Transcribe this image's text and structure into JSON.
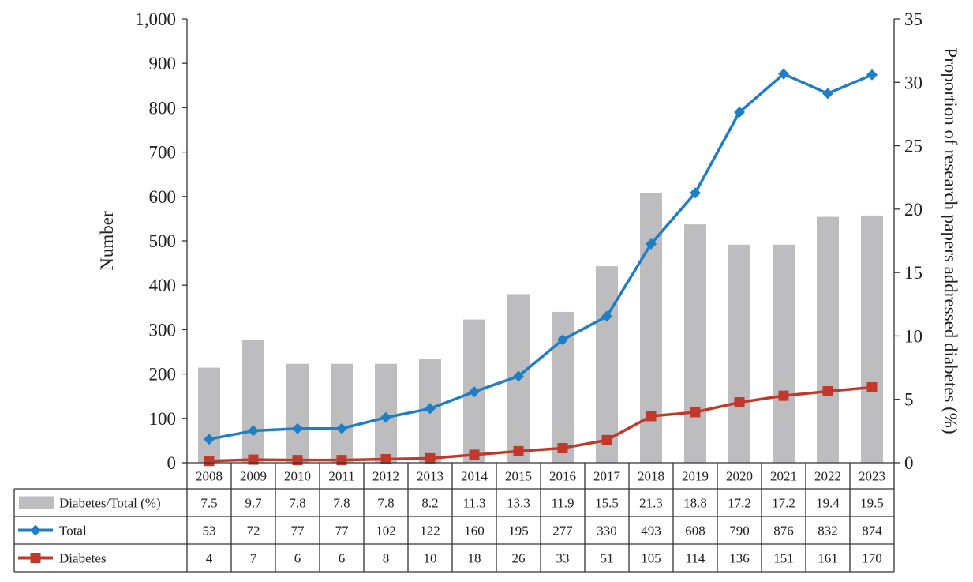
{
  "chart_data": {
    "type": "bar",
    "categories": [
      "2008",
      "2009",
      "2010",
      "2011",
      "2012",
      "2013",
      "2014",
      "2015",
      "2016",
      "2017",
      "2018",
      "2019",
      "2020",
      "2021",
      "2022",
      "2023"
    ],
    "series": [
      {
        "name": "Diabetes/Total (%)",
        "kind": "bar",
        "axis": "right",
        "color": "#bdbdbf",
        "values": [
          7.5,
          9.7,
          7.8,
          7.8,
          7.8,
          8.2,
          11.3,
          13.3,
          11.9,
          15.5,
          21.3,
          18.8,
          17.2,
          17.2,
          19.4,
          19.5
        ]
      },
      {
        "name": "Total",
        "kind": "line",
        "axis": "left",
        "color": "#1f7ec4",
        "marker": "diamond",
        "values": [
          53,
          72,
          77,
          77,
          102,
          122,
          160,
          195,
          277,
          330,
          493,
          608,
          790,
          876,
          832,
          874
        ]
      },
      {
        "name": "Diabetes",
        "kind": "line",
        "axis": "left",
        "color": "#c1392b",
        "marker": "square",
        "values": [
          4,
          7,
          6,
          6,
          8,
          10,
          18,
          26,
          33,
          51,
          105,
          114,
          136,
          151,
          161,
          170
        ]
      }
    ],
    "ylabel": "Number",
    "y2label": "Proportion of research papers addressed diabetes (%)",
    "ylim": [
      0,
      1000
    ],
    "y2lim": [
      0,
      35
    ],
    "yticks": [
      "0",
      "100",
      "200",
      "300",
      "400",
      "500",
      "600",
      "700",
      "800",
      "900",
      "1,000"
    ],
    "y2ticks": [
      "0",
      "5",
      "10",
      "15",
      "20",
      "25",
      "30",
      "35"
    ],
    "table": [
      {
        "label": "Diabetes/Total (%)",
        "cells": [
          "7.5",
          "9.7",
          "7.8",
          "7.8",
          "7.8",
          "8.2",
          "11.3",
          "13.3",
          "11.9",
          "15.5",
          "21.3",
          "18.8",
          "17.2",
          "17.2",
          "19.4",
          "19.5"
        ]
      },
      {
        "label": "Total",
        "cells": [
          "53",
          "72",
          "77",
          "77",
          "102",
          "122",
          "160",
          "195",
          "277",
          "330",
          "493",
          "608",
          "790",
          "876",
          "832",
          "874"
        ]
      },
      {
        "label": "Diabetes",
        "cells": [
          "4",
          "7",
          "6",
          "6",
          "8",
          "10",
          "18",
          "26",
          "33",
          "51",
          "105",
          "114",
          "136",
          "151",
          "161",
          "170"
        ]
      }
    ],
    "grid": false,
    "legend": "table-left"
  }
}
